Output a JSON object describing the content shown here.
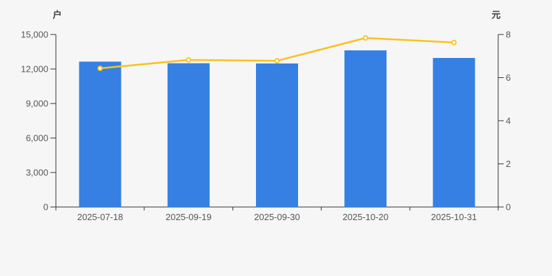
{
  "page": {
    "background": "#f6f6f6"
  },
  "chart_data": {
    "type": "combo",
    "title": "",
    "legend": "none",
    "grid": "off",
    "categories": [
      "2025-07-18",
      "2025-09-19",
      "2025-09-30",
      "2025-10-20",
      "2025-10-31"
    ],
    "series": [
      {
        "name": "bar-series",
        "type": "bar",
        "axis": "left",
        "unit": "户",
        "color": "#3580e2",
        "values": [
          12640,
          12500,
          12480,
          13620,
          12960
        ]
      },
      {
        "name": "line-series",
        "type": "line",
        "axis": "right",
        "unit": "元",
        "color": "#f9c21f",
        "symbol": "hollow-circle",
        "symbol_fill": "#ffffff",
        "values": [
          6.43,
          6.82,
          6.78,
          7.84,
          7.63
        ]
      }
    ],
    "left_axis": {
      "title": "户",
      "min": 0,
      "max": 15000,
      "ticks": [
        0,
        3000,
        6000,
        9000,
        12000,
        15000
      ],
      "tick_labels": [
        "0",
        "3,000",
        "6,000",
        "9,000",
        "12,000",
        "15,000"
      ]
    },
    "right_axis": {
      "title": "元",
      "min": 0,
      "max": 8,
      "ticks": [
        0,
        2,
        4,
        6,
        8
      ],
      "tick_labels": [
        "0",
        "2",
        "4",
        "6",
        "8"
      ]
    },
    "x_axis": {
      "tick_labels": [
        "2025-07-18",
        "2025-09-19",
        "2025-09-30",
        "2025-10-20",
        "2025-10-31"
      ]
    },
    "axis_color": "#333333",
    "tick_label_color": "#555555"
  }
}
